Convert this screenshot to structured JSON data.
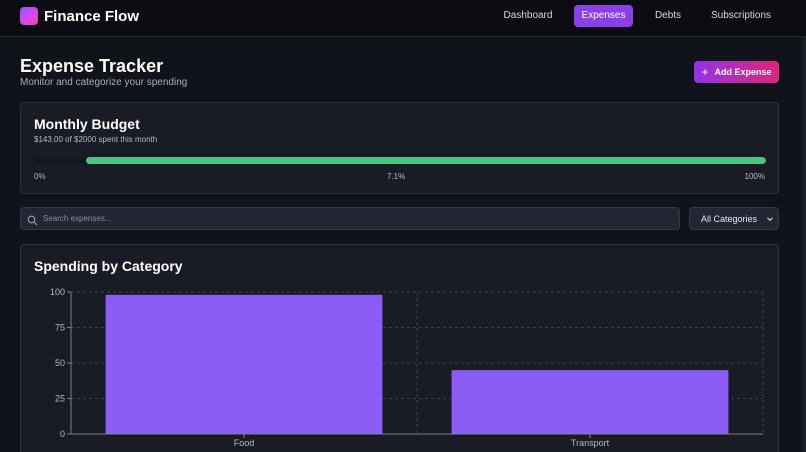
{
  "app": {
    "name": "Finance Flow"
  },
  "nav": {
    "items": [
      {
        "label": "Dashboard",
        "active": false
      },
      {
        "label": "Expenses",
        "active": true
      },
      {
        "label": "Debts",
        "active": false
      },
      {
        "label": "Subscriptions",
        "active": false
      }
    ]
  },
  "header": {
    "title": "Expense Tracker",
    "subtitle": "Monitor and categorize your spending",
    "add_button_label": "Add Expense",
    "add_button_icon": "plus-icon"
  },
  "budget": {
    "title": "Monthly Budget",
    "summary": "$143.00 of $2000 spent this month",
    "progress_percent": 7.1,
    "label_start": "0%",
    "label_mid": "7.1%",
    "label_end": "100%",
    "bar_color": "#4cc37f"
  },
  "filters": {
    "search_placeholder": "Search expenses...",
    "search_value": "",
    "category_selected": "All Categories"
  },
  "colors": {
    "accent": "#8b3fe8",
    "bar": "#8b5cf6",
    "card": "#191c25"
  },
  "chart_data": {
    "type": "bar",
    "title": "Spending by Category",
    "categories": [
      "Food",
      "Transport"
    ],
    "values": [
      98,
      45
    ],
    "ylim": [
      0,
      100
    ],
    "yticks": [
      0,
      25,
      50,
      75,
      100
    ],
    "xlabel": "",
    "ylabel": "",
    "grid": true
  }
}
